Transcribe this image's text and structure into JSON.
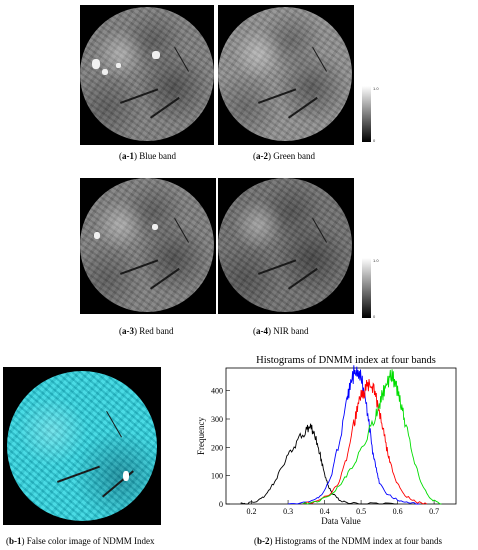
{
  "captions": {
    "a1": {
      "id": "a-1",
      "label": "Blue band"
    },
    "a2": {
      "id": "a-2",
      "label": "Green band"
    },
    "a3": {
      "id": "a-3",
      "label": "Red band"
    },
    "a4": {
      "id": "a-4",
      "label": "NIR band"
    },
    "b1": {
      "id": "b-1",
      "label": "False color image of NDMM Index"
    },
    "b2": {
      "id": "b-2",
      "label": "Histograms of the NDMM index at four bands"
    }
  },
  "colorbar_top": {
    "max": "1.0",
    "min": "0"
  },
  "colorbar_bottom": {
    "max": "1.0",
    "min": "0"
  },
  "chart_data": {
    "type": "line",
    "title": "Histograms of DNMM index at four bands",
    "xlabel": "Data Value",
    "ylabel": "Frequency",
    "xlim": [
      0.13,
      0.76
    ],
    "ylim": [
      0,
      480
    ],
    "x_ticks": [
      0.2,
      0.3,
      0.4,
      0.5,
      0.6,
      0.7
    ],
    "y_ticks": [
      0,
      100,
      200,
      300,
      400
    ],
    "series": [
      {
        "color": "#000000",
        "x": [
          0.17,
          0.19,
          0.21,
          0.23,
          0.25,
          0.27,
          0.29,
          0.31,
          0.33,
          0.35,
          0.36,
          0.37,
          0.38,
          0.39,
          0.4,
          0.41,
          0.42,
          0.44,
          0.46,
          0.5,
          0.55,
          0.6
        ],
        "y": [
          0,
          2,
          8,
          22,
          50,
          95,
          145,
          190,
          230,
          262,
          270,
          255,
          215,
          160,
          105,
          65,
          38,
          15,
          6,
          2,
          0,
          0
        ]
      },
      {
        "color": "#0000ff",
        "x": [
          0.3,
          0.35,
          0.38,
          0.4,
          0.42,
          0.44,
          0.46,
          0.47,
          0.48,
          0.49,
          0.5,
          0.51,
          0.52,
          0.53,
          0.54,
          0.55,
          0.57,
          0.6,
          0.63,
          0.66
        ],
        "y": [
          0,
          5,
          20,
          45,
          110,
          220,
          350,
          420,
          460,
          470,
          440,
          390,
          300,
          200,
          130,
          75,
          35,
          15,
          4,
          0
        ]
      },
      {
        "color": "#ff0000",
        "x": [
          0.34,
          0.38,
          0.42,
          0.44,
          0.46,
          0.48,
          0.49,
          0.5,
          0.51,
          0.52,
          0.53,
          0.54,
          0.55,
          0.56,
          0.57,
          0.58,
          0.6,
          0.62,
          0.65,
          0.68
        ],
        "y": [
          0,
          10,
          40,
          80,
          160,
          280,
          340,
          380,
          405,
          420,
          410,
          380,
          330,
          260,
          200,
          140,
          70,
          30,
          8,
          0
        ]
      },
      {
        "color": "#00dd00",
        "x": [
          0.34,
          0.38,
          0.42,
          0.45,
          0.48,
          0.5,
          0.52,
          0.54,
          0.55,
          0.56,
          0.57,
          0.58,
          0.59,
          0.6,
          0.61,
          0.62,
          0.64,
          0.66,
          0.68,
          0.7,
          0.72
        ],
        "y": [
          0,
          8,
          35,
          80,
          140,
          190,
          250,
          310,
          350,
          390,
          430,
          455,
          440,
          400,
          350,
          290,
          180,
          90,
          35,
          10,
          0
        ]
      }
    ]
  }
}
